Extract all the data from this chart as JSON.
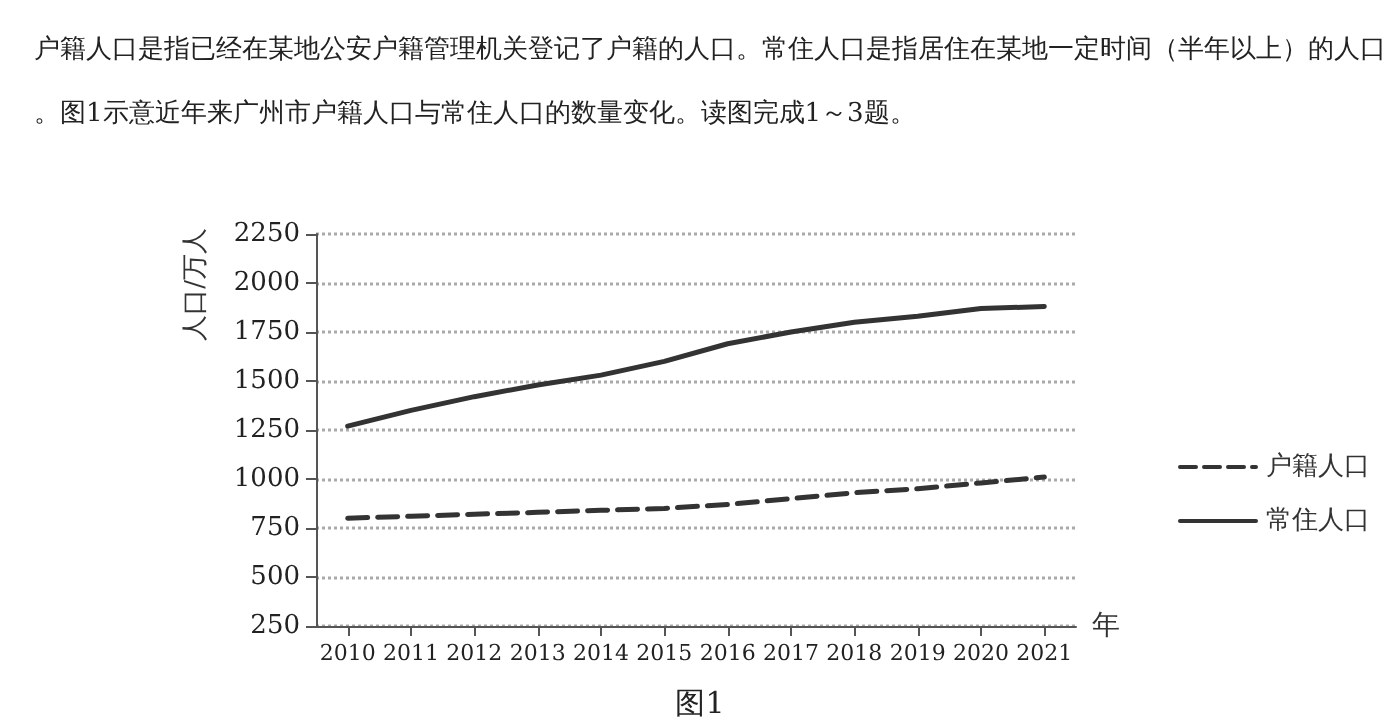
{
  "chart_data": {
    "type": "line",
    "title": "户籍人口是指已经在某地公安户籍管理机关登记了户籍的人口。常住人口是指居住在某地一定时间（半年以上）的人口。图1示意近年来广州市户籍人口与常住人口的数量变化。读图完成1～3题。",
    "annotations": [
      "图1"
    ],
    "xlabel": "年",
    "ylabel": "人口/万人",
    "categories": [
      "2010",
      "2011",
      "2012",
      "2013",
      "2014",
      "2015",
      "2016",
      "2017",
      "2018",
      "2019",
      "2020",
      "2021"
    ],
    "series": [
      {
        "name": "户籍人口",
        "color": "#333333",
        "line_style": "dashed",
        "values": [
          800,
          810,
          820,
          830,
          840,
          850,
          870,
          900,
          930,
          950,
          980,
          1010
        ]
      },
      {
        "name": "常住人口",
        "color": "#333333",
        "line_style": "solid",
        "values": [
          1270,
          1350,
          1420,
          1480,
          1530,
          1600,
          1690,
          1750,
          1800,
          1830,
          1870,
          1880
        ]
      }
    ],
    "ylim": [
      250,
      2250
    ],
    "yticks": [
      250,
      500,
      750,
      1000,
      1250,
      1500,
      1750,
      2000,
      2250
    ],
    "grid": "y",
    "legend": "right",
    "marker": "none"
  }
}
